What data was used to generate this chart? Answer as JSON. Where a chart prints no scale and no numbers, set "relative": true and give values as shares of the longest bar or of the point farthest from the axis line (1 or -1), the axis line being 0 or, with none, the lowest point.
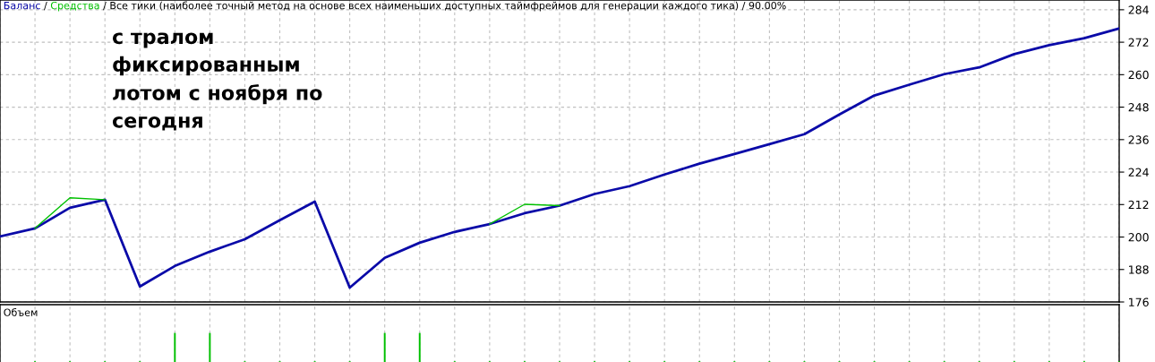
{
  "chart_data": [
    {
      "type": "line",
      "title": "/ Все тики (наиболее точный метод на основе всех наименьших доступных таймфреймов для генерации каждого тика) / 90.00%",
      "annotations": [
        "/",
        "с тралом\nфиксированным\nлотом с ноября по\nсегодня"
      ],
      "categories": [
        null,
        null,
        null,
        null,
        null,
        null,
        null,
        null,
        null,
        null,
        null,
        null,
        null,
        null,
        null,
        null,
        null,
        null,
        null,
        null,
        null,
        null,
        null,
        null,
        null,
        null,
        null,
        null,
        null,
        null,
        null,
        null,
        null
      ],
      "series": [
        {
          "name": "Средства",
          "color": "#00c000",
          "values": [
            null,
            203.2,
            214.5,
            213.8,
            null,
            null,
            null,
            null,
            null,
            null,
            null,
            null,
            null,
            null,
            204.8,
            212.1,
            211.6,
            null,
            null,
            null,
            null,
            null,
            null,
            null,
            null,
            null,
            null,
            null,
            null,
            null,
            null,
            null,
            null
          ]
        },
        {
          "name": "Баланс",
          "color": "#0a0aa8",
          "values": [
            200.2,
            203.2,
            210.8,
            213.8,
            181.7,
            189.3,
            194.6,
            199.2,
            206.2,
            213.1,
            181.3,
            192.3,
            197.9,
            201.9,
            204.8,
            208.8,
            211.6,
            215.9,
            218.8,
            223.1,
            227.1,
            230.7,
            234.3,
            238.0,
            245.3,
            252.3,
            256.3,
            260.2,
            262.7,
            267.6,
            270.9,
            273.5,
            277.1
          ]
        }
      ],
      "ylim": [
        176,
        287.6
      ],
      "yticks": [
        176,
        188,
        200,
        212,
        224,
        236,
        248,
        260,
        272,
        284
      ],
      "grid": true,
      "legend": "top left",
      "marker": "none",
      "line_style": "solid"
    },
    {
      "type": "bar",
      "title": "Объем",
      "relative": true,
      "color": "#00c000",
      "grid": "x",
      "categories": [
        null,
        null,
        null,
        null,
        null,
        null,
        null,
        null,
        null,
        null,
        null,
        null,
        null,
        null,
        null,
        null,
        null,
        null,
        null,
        null,
        null,
        null,
        null,
        null,
        null,
        null,
        null,
        null,
        null,
        null,
        null,
        null,
        null
      ],
      "values": [
        null,
        0.4,
        0.4,
        0.4,
        0.4,
        1,
        1,
        0.4,
        0.4,
        0.4,
        0.4,
        1,
        1,
        0.4,
        0.4,
        0.4,
        0.4,
        0.4,
        0.4,
        0.4,
        0.4,
        0.4,
        0.4,
        0.4,
        0.4,
        0.4,
        0.4,
        0.4,
        0.4,
        0.4,
        0.4,
        0.4,
        0.4
      ]
    }
  ]
}
